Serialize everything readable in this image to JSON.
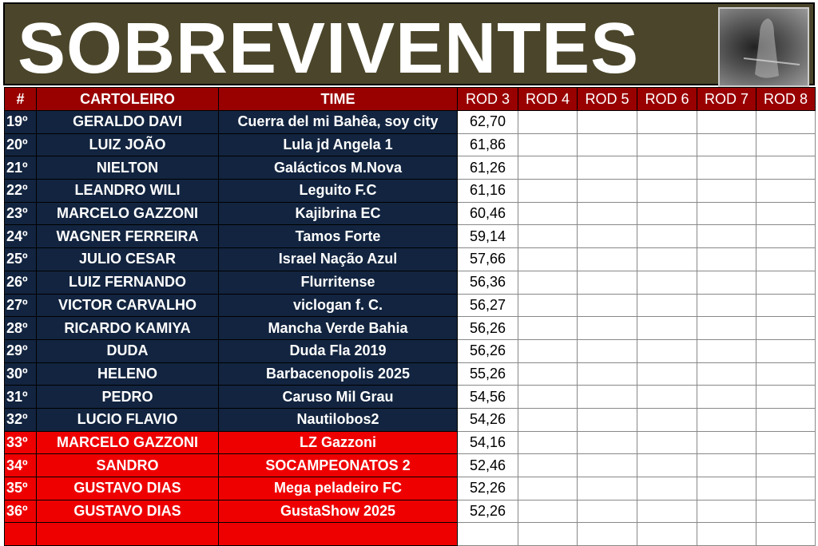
{
  "title": "SOBREVIVENTES",
  "image": "grim-reaper-image",
  "colors": {
    "banner": "#4b462b",
    "header": "#990000",
    "safe": "#12243f",
    "eliminated": "#ee0000"
  },
  "columns": [
    "#",
    "CARTOLEIRO",
    "TIME",
    "ROD 3",
    "ROD 4",
    "ROD 5",
    "ROD 6",
    "ROD 7",
    "ROD 8"
  ],
  "rows": [
    {
      "pos": "19º",
      "name": "GERALDO DAVI",
      "team": "Cuerra del mi Bahêa, soy city",
      "rod3": "62,70",
      "status": "safe"
    },
    {
      "pos": "20º",
      "name": "LUIZ JOÃO",
      "team": "Lula jd Angela 1",
      "rod3": "61,86",
      "status": "safe"
    },
    {
      "pos": "21º",
      "name": "NIELTON",
      "team": "Galácticos M.Nova",
      "rod3": "61,26",
      "status": "safe"
    },
    {
      "pos": "22º",
      "name": "LEANDRO WILI",
      "team": "Leguito F.C",
      "rod3": "61,16",
      "status": "safe"
    },
    {
      "pos": "23º",
      "name": "MARCELO GAZZONI",
      "team": "Kajibrina EC",
      "rod3": "60,46",
      "status": "safe"
    },
    {
      "pos": "24º",
      "name": "WAGNER FERREIRA",
      "team": "Tamos Forte",
      "rod3": "59,14",
      "status": "safe"
    },
    {
      "pos": "25º",
      "name": "JULIO CESAR",
      "team": "Israel Nação Azul",
      "rod3": "57,66",
      "status": "safe"
    },
    {
      "pos": "26º",
      "name": "LUIZ FERNANDO",
      "team": "Flurritense",
      "rod3": "56,36",
      "status": "safe"
    },
    {
      "pos": "27º",
      "name": "VICTOR CARVALHO",
      "team": "viclogan f. C.",
      "rod3": "56,27",
      "status": "safe"
    },
    {
      "pos": "28º",
      "name": "RICARDO KAMIYA",
      "team": "Mancha Verde Bahia",
      "rod3": "56,26",
      "status": "safe"
    },
    {
      "pos": "29º",
      "name": "DUDA",
      "team": "Duda Fla 2019",
      "rod3": "56,26",
      "status": "safe"
    },
    {
      "pos": "30º",
      "name": "HELENO",
      "team": "Barbacenopolis 2025",
      "rod3": "55,26",
      "status": "safe"
    },
    {
      "pos": "31º",
      "name": "PEDRO",
      "team": "Caruso Mil Grau",
      "rod3": "54,56",
      "status": "safe"
    },
    {
      "pos": "32º",
      "name": "LUCIO FLAVIO",
      "team": "Nautilobos2",
      "rod3": "54,26",
      "status": "safe"
    },
    {
      "pos": "33º",
      "name": "MARCELO GAZZONI",
      "team": "LZ Gazzoni",
      "rod3": "54,16",
      "status": "eliminated"
    },
    {
      "pos": "34º",
      "name": "SANDRO",
      "team": "SOCAMPEONATOS 2",
      "rod3": "52,46",
      "status": "eliminated"
    },
    {
      "pos": "35º",
      "name": "GUSTAVO DIAS",
      "team": "Mega peladeiro FC",
      "rod3": "52,26",
      "status": "eliminated"
    },
    {
      "pos": "36º",
      "name": "GUSTAVO DIAS",
      "team": "GustaShow 2025",
      "rod3": "52,26",
      "status": "eliminated"
    },
    {
      "pos": "",
      "name": "",
      "team": "",
      "rod3": "",
      "status": "eliminated"
    }
  ]
}
